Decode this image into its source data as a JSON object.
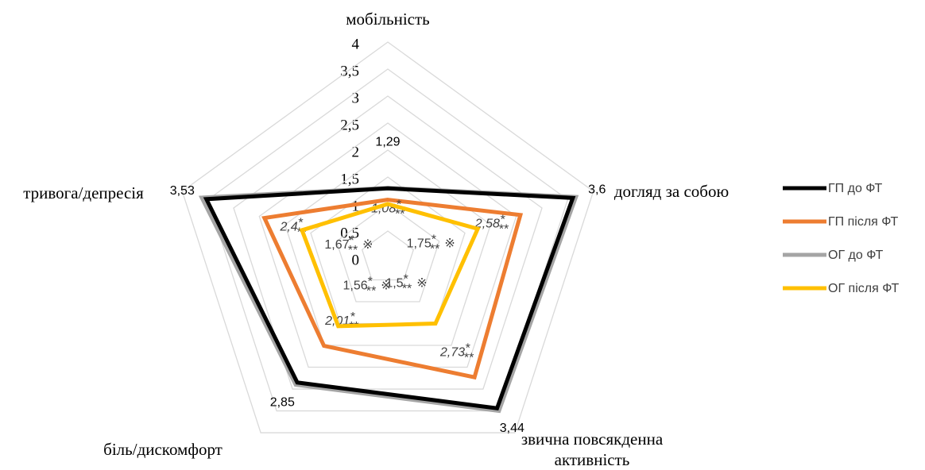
{
  "chart_data": {
    "type": "radar",
    "categories": [
      "мобільність",
      "догляд за собою",
      "звична повсякденна активність",
      "біль/дискомфорт",
      "тривога/депресія"
    ],
    "ylim": [
      0,
      4
    ],
    "yticks": [
      0,
      {
        "value": 0.5,
        "label": "0,5"
      },
      1,
      {
        "value": 1.5,
        "label": "1,5"
      },
      2,
      {
        "value": 2.5,
        "label": "2,5"
      },
      3,
      {
        "value": 3.5,
        "label": "3,5"
      },
      4
    ],
    "grid": true,
    "legend": "right",
    "series": [
      {
        "name": "ОГ до ФТ",
        "color": "#a5a5a5",
        "values": [
          1.3,
          3.66,
          3.5,
          2.9,
          3.62
        ]
      },
      {
        "name": "ГП до ФТ",
        "color": "#000000",
        "values": [
          1.29,
          3.6,
          3.44,
          2.85,
          3.53
        ],
        "value_labels": [
          "1,29",
          "3,6",
          "3,44",
          "2,85",
          "3,53"
        ]
      },
      {
        "name": "ГП після ФТ",
        "color": "#ed7d31",
        "values": [
          1.08,
          2.58,
          2.73,
          2.01,
          2.4
        ],
        "value_labels": [
          "1,08",
          "2,58",
          "2,73",
          "2,01",
          "2,4"
        ],
        "label_marks": [
          {
            "sup": "*",
            "sub": "**"
          },
          {
            "sup": "*",
            "sub": "**"
          },
          {
            "sup": "*",
            "sub": "**"
          },
          {
            "sup": "*",
            "sub": "**"
          },
          {
            "sup": "*",
            "sub": "**"
          }
        ]
      },
      {
        "name": "ОГ після ФТ",
        "color": "#ffc000",
        "values": [
          1.0,
          1.75,
          1.5,
          1.56,
          1.67
        ],
        "value_labels": [
          null,
          "1,75",
          "1,5",
          "1,56",
          "1,67"
        ],
        "label_marks": [
          null,
          {
            "sup": "*",
            "sub": "**",
            "extra": "※"
          },
          {
            "sup": "*",
            "sub": "**",
            "extra": "※"
          },
          {
            "sup": "*",
            "sub": "**",
            "extra": "※"
          },
          {
            "sup": "*",
            "sub": "**",
            "extra": "※"
          }
        ]
      }
    ]
  }
}
